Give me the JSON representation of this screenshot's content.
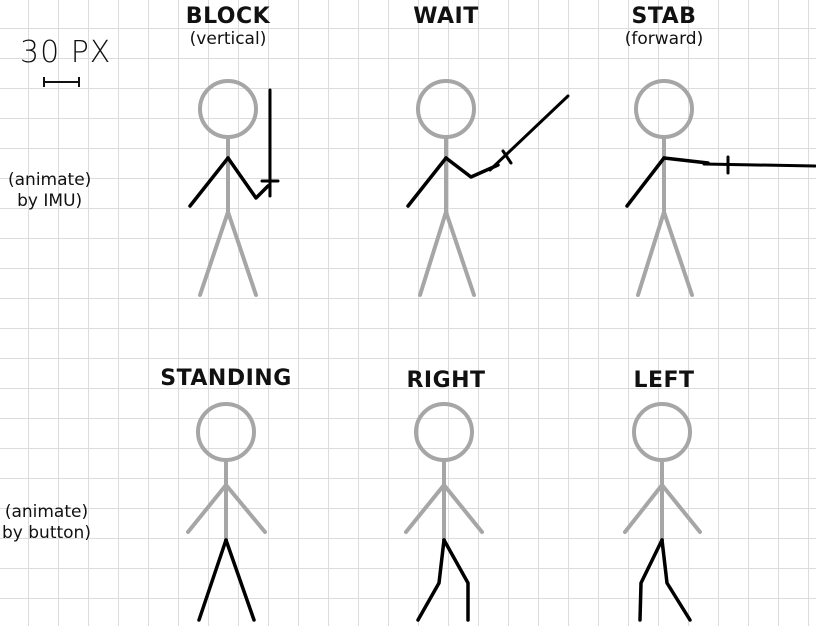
{
  "scale": {
    "label": "30 PX"
  },
  "rows": {
    "imu": {
      "line1": "(animate)",
      "line2": "by IMU)"
    },
    "button": {
      "line1": "(animate)",
      "line2": "by button)"
    }
  },
  "poses": {
    "block": {
      "title": "BLOCK",
      "subtitle": "(vertical)"
    },
    "wait": {
      "title": "WAIT"
    },
    "stab": {
      "title": "STAB",
      "subtitle": "(forward)"
    },
    "standing": {
      "title": "STANDING"
    },
    "right": {
      "title": "RIGHT"
    },
    "left": {
      "title": "LEFT"
    }
  },
  "colors": {
    "animated_part": "#000000",
    "static_part": "#a6a6a6",
    "grid": "#dcdcdc"
  }
}
